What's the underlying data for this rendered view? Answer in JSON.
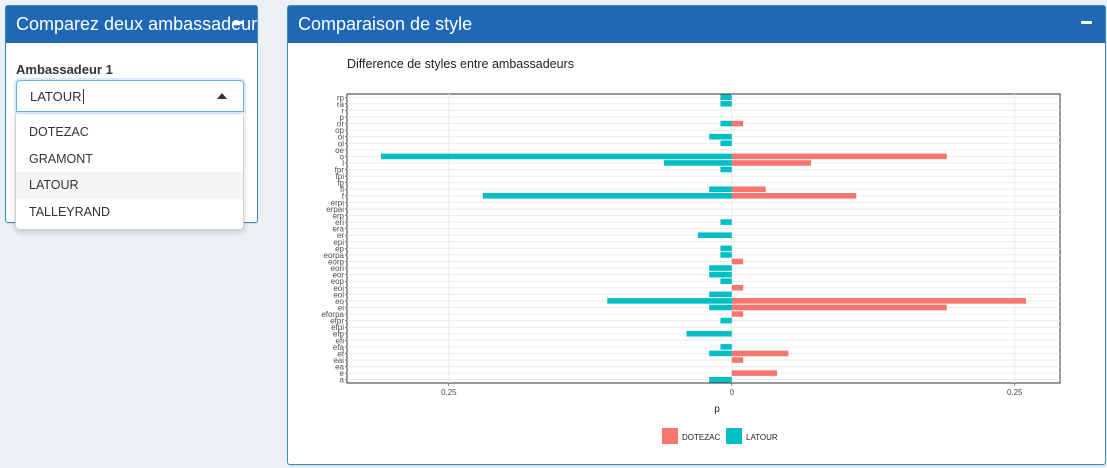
{
  "left_panel": {
    "title": "Comparez deux ambassadeurs",
    "field_label": "Ambassadeur 1",
    "selected": "LATOUR",
    "options": [
      "DOTEZAC",
      "GRAMONT",
      "LATOUR",
      "TALLEYRAND"
    ]
  },
  "right_panel": {
    "title": "Comparaison de style"
  },
  "colors": {
    "header": "#1f68b6",
    "dotezac": "#f8766d",
    "latour": "#00bfc4"
  },
  "chart_data": {
    "type": "bar",
    "orientation": "horizontal",
    "title": "Difference de styles entre ambassadeurs",
    "xlabel": "p",
    "ylabel": "",
    "xticks": [
      -0.25,
      0,
      0.25
    ],
    "xtick_labels": [
      "0.25",
      "0",
      "0.25"
    ],
    "xlim": [
      -0.34,
      0.29
    ],
    "categories": [
      "rp",
      "ra",
      "r",
      "p",
      "or",
      "op",
      "oi",
      "ol",
      "oe",
      "o",
      "l",
      "fpr",
      "fpi",
      "fp",
      "fl",
      "f",
      "erpi",
      "erpai",
      "erp",
      "eri",
      "era",
      "er",
      "epi",
      "ep",
      "eorpa",
      "eorp",
      "eori",
      "eor",
      "eop",
      "eoi",
      "eol",
      "eo",
      "ei",
      "eforpa",
      "efpr",
      "efpi",
      "efp",
      "efi",
      "efa",
      "ef",
      "eai",
      "ea",
      "e",
      "a"
    ],
    "legend_position": "bottom",
    "series": [
      {
        "name": "DOTEZAC",
        "values": [
          0,
          0,
          0,
          0,
          0.01,
          0,
          0,
          0,
          0,
          0.19,
          0.07,
          0,
          0,
          0,
          0.03,
          0.11,
          0,
          0,
          0,
          0,
          0,
          0,
          0,
          0,
          0,
          0.01,
          0,
          0,
          0,
          0.01,
          0,
          0.26,
          0.19,
          0.01,
          0,
          0,
          0,
          0,
          0,
          0.05,
          0.01,
          0,
          0.04,
          0
        ]
      },
      {
        "name": "LATOUR",
        "values": [
          -0.01,
          -0.01,
          0,
          0,
          -0.01,
          0,
          -0.02,
          -0.01,
          0,
          -0.31,
          -0.06,
          -0.01,
          0,
          0,
          -0.02,
          -0.22,
          0,
          0,
          0,
          -0.01,
          0,
          -0.03,
          0,
          -0.01,
          -0.01,
          0,
          -0.02,
          -0.02,
          -0.01,
          0,
          -0.02,
          -0.11,
          -0.02,
          0,
          -0.01,
          0,
          -0.04,
          0,
          -0.01,
          -0.02,
          0,
          0,
          0,
          -0.02
        ]
      }
    ]
  }
}
